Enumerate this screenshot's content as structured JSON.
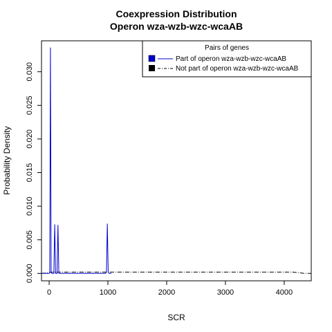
{
  "chart_data": {
    "type": "line",
    "title": "Coexpression Distribution",
    "subtitle": "Operon wza-wzb-wzc-wcaAB",
    "xlabel": "SCR",
    "ylabel": "Probability Density",
    "xlim": [
      -130,
      4460
    ],
    "ylim": [
      -0.0011,
      0.0346
    ],
    "xticks": [
      0,
      1000,
      2000,
      3000,
      4000
    ],
    "yticks": [
      0.0,
      0.005,
      0.01,
      0.015,
      0.02,
      0.025,
      0.03
    ],
    "ytick_labels": [
      "0.000",
      "0.005",
      "0.010",
      "0.015",
      "0.020",
      "0.025",
      "0.030"
    ],
    "grid": false,
    "legend": {
      "title": "Pairs of genes",
      "position": "top-right",
      "entries": [
        {
          "label": "Part of operon wza-wzb-wzc-wcaAB",
          "color": "#0000cc",
          "style": "solid"
        },
        {
          "label": "Not part of operon wza-wzb-wzc-wcaAB",
          "color": "#000000",
          "style": "dashdot"
        }
      ]
    },
    "series": [
      {
        "name": "Part of operon wza-wzb-wzc-wcaAB",
        "color": "#0000cc",
        "x": [
          -130,
          0,
          10,
          22,
          34,
          45,
          60,
          80,
          95,
          110,
          120,
          135,
          150,
          165,
          175,
          400,
          700,
          960,
          975,
          990,
          1005,
          1020,
          1035,
          1060
        ],
        "y": [
          0.0,
          0.0,
          0.0002,
          0.0336,
          0.0002,
          0.0,
          0.0,
          0.0,
          0.0073,
          0.0,
          0.0,
          0.0,
          0.0072,
          0.0,
          0.0,
          0.0,
          0.0,
          0.0,
          0.0002,
          0.0074,
          0.0002,
          0.0,
          0.0,
          0.0
        ]
      },
      {
        "name": "Not part of operon wza-wzb-wzc-wcaAB",
        "color": "#000000",
        "x": [
          -130,
          0,
          40,
          80,
          200,
          500,
          1000,
          1500,
          2000,
          2500,
          3000,
          3500,
          4000,
          4150,
          4250,
          4350,
          4460
        ],
        "y": [
          0.0,
          0.0001,
          0.0002,
          0.0002,
          0.0002,
          0.0002,
          0.0002,
          0.0002,
          0.0002,
          0.0002,
          0.0002,
          0.0002,
          0.0002,
          0.0002,
          0.0001,
          0.0,
          0.0
        ]
      }
    ]
  }
}
